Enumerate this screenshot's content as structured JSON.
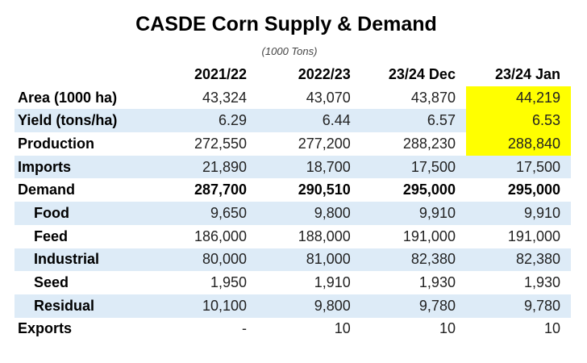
{
  "title": "CASDE Corn Supply & Demand",
  "subtitle": "(1000 Tons)",
  "highlight_color": "#ffff00",
  "shade_color": "#ddebf7",
  "columns": [
    "2021/22",
    "2022/23",
    "23/24 Dec",
    "23/24 Jan"
  ],
  "rows": [
    {
      "label": "Area (1000 ha)",
      "values": [
        "43,324",
        "43,070",
        "43,870",
        "44,219"
      ]
    },
    {
      "label": "Yield (tons/ha)",
      "values": [
        "6.29",
        "6.44",
        "6.57",
        "6.53"
      ]
    },
    {
      "label": "Production",
      "values": [
        "272,550",
        "277,200",
        "288,230",
        "288,840"
      ]
    },
    {
      "label": "Imports",
      "values": [
        "21,890",
        "18,700",
        "17,500",
        "17,500"
      ]
    },
    {
      "label": "Demand",
      "values": [
        "287,700",
        "290,510",
        "295,000",
        "295,000"
      ]
    },
    {
      "label": "Food",
      "values": [
        "9,650",
        "9,800",
        "9,910",
        "9,910"
      ]
    },
    {
      "label": "Feed",
      "values": [
        "186,000",
        "188,000",
        "191,000",
        "191,000"
      ]
    },
    {
      "label": "Industrial",
      "values": [
        "80,000",
        "81,000",
        "82,380",
        "82,380"
      ]
    },
    {
      "label": "Seed",
      "values": [
        "1,950",
        "1,910",
        "1,930",
        "1,930"
      ]
    },
    {
      "label": "Residual",
      "values": [
        "10,100",
        "9,800",
        "9,780",
        "9,780"
      ]
    },
    {
      "label": "Exports",
      "values": [
        "-",
        "10",
        "10",
        "10"
      ]
    }
  ]
}
